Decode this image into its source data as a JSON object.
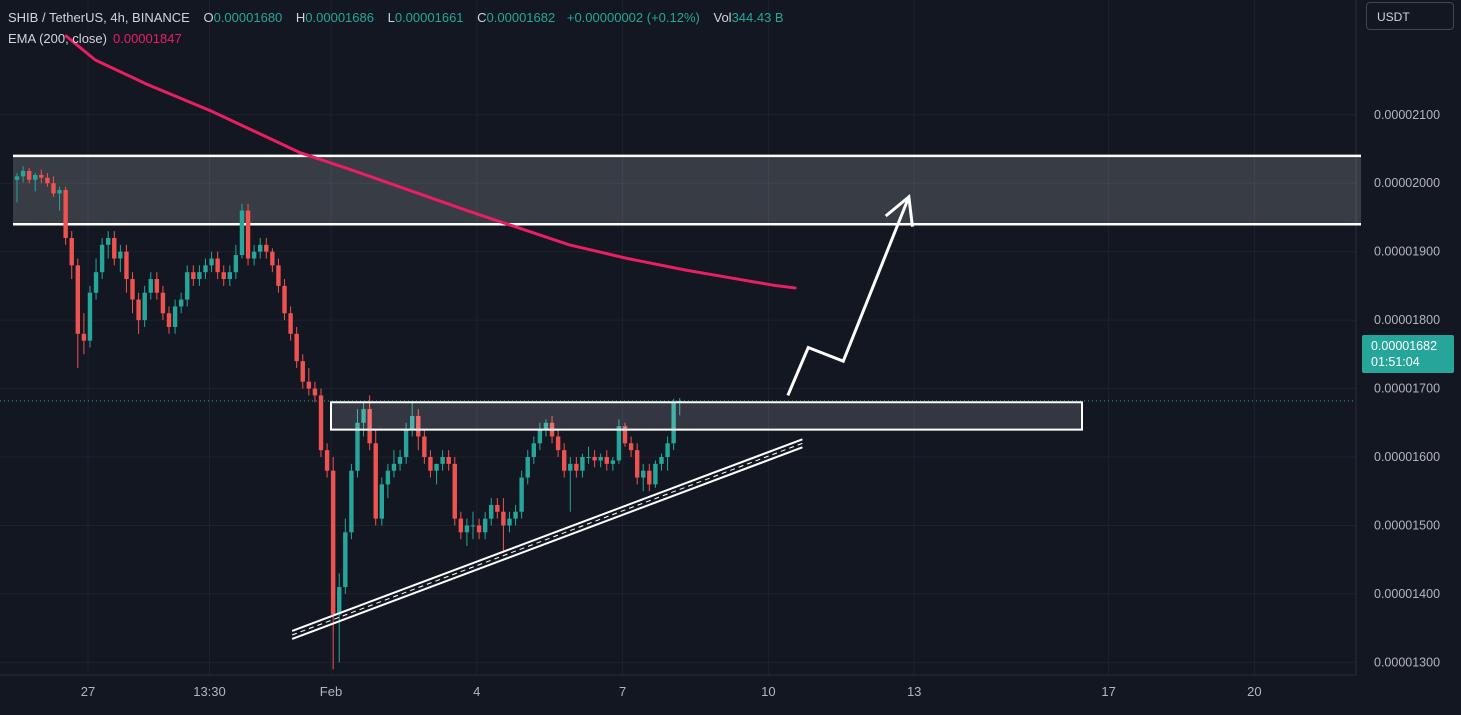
{
  "header": {
    "symbol": "SHIB / TetherUS, 4h, BINANCE",
    "ohlc": [
      {
        "key": "O",
        "value": "0.00001680"
      },
      {
        "key": "H",
        "value": "0.00001686"
      },
      {
        "key": "L",
        "value": "0.00001661"
      },
      {
        "key": "C",
        "value": "0.00001682"
      }
    ],
    "change": "+0.00000002 (+0.12%)",
    "vol_label": "Vol",
    "vol_value": "344.43 B",
    "ema_label": "EMA (200, close)",
    "ema_value": "0.00001847"
  },
  "currency": "USDT",
  "last_price": {
    "value": "0.00001682",
    "countdown": "01:51:04"
  },
  "colors": {
    "background": "#131722",
    "up": "#26a69a",
    "down": "#ef5350",
    "ema": "#e91e63",
    "grid": "#1e222d",
    "drawing": "#ffffff"
  },
  "chart_data": {
    "type": "candlestick",
    "symbol": "SHIB/USDT",
    "timeframe": "4h",
    "y_range": [
      1.22e-05,
      2.18e-05
    ],
    "y_ticks": [
      "0.00002100",
      "0.00002000",
      "0.00001900",
      "0.00001800",
      "0.00001700",
      "0.00001600",
      "0.00001500",
      "0.00001400",
      "0.00001300"
    ],
    "x_ticks": [
      "27",
      "13:30",
      "Feb",
      "4",
      "7",
      "10",
      "13",
      "17",
      "20"
    ],
    "candles": [
      [
        2.005,
        2.015,
        1.972,
        2.01
      ],
      [
        2.01,
        2.025,
        2.001,
        2.018
      ],
      [
        2.018,
        2.022,
        2.0,
        2.005
      ],
      [
        2.005,
        2.015,
        1.988,
        2.012
      ],
      [
        2.012,
        2.02,
        2.0,
        2.008
      ],
      [
        2.008,
        2.015,
        1.995,
        2.0
      ],
      [
        2.0,
        2.01,
        1.98,
        1.985
      ],
      [
        1.985,
        1.995,
        1.96,
        1.99
      ],
      [
        1.99,
        1.995,
        1.91,
        1.92
      ],
      [
        1.92,
        1.93,
        1.86,
        1.88
      ],
      [
        1.88,
        1.89,
        1.73,
        1.78
      ],
      [
        1.78,
        1.81,
        1.75,
        1.77
      ],
      [
        1.77,
        1.85,
        1.76,
        1.84
      ],
      [
        1.84,
        1.89,
        1.83,
        1.87
      ],
      [
        1.87,
        1.92,
        1.86,
        1.91
      ],
      [
        1.91,
        1.93,
        1.89,
        1.92
      ],
      [
        1.92,
        1.93,
        1.88,
        1.89
      ],
      [
        1.89,
        1.91,
        1.87,
        1.9
      ],
      [
        1.9,
        1.91,
        1.84,
        1.86
      ],
      [
        1.86,
        1.87,
        1.81,
        1.83
      ],
      [
        1.83,
        1.84,
        1.78,
        1.8
      ],
      [
        1.8,
        1.85,
        1.79,
        1.84
      ],
      [
        1.84,
        1.87,
        1.83,
        1.86
      ],
      [
        1.86,
        1.87,
        1.83,
        1.84
      ],
      [
        1.84,
        1.85,
        1.8,
        1.81
      ],
      [
        1.81,
        1.82,
        1.78,
        1.79
      ],
      [
        1.79,
        1.83,
        1.78,
        1.82
      ],
      [
        1.82,
        1.84,
        1.81,
        1.83
      ],
      [
        1.83,
        1.88,
        1.82,
        1.87
      ],
      [
        1.87,
        1.88,
        1.85,
        1.86
      ],
      [
        1.86,
        1.88,
        1.85,
        1.87
      ],
      [
        1.87,
        1.89,
        1.86,
        1.88
      ],
      [
        1.88,
        1.9,
        1.87,
        1.89
      ],
      [
        1.89,
        1.9,
        1.86,
        1.87
      ],
      [
        1.87,
        1.88,
        1.85,
        1.86
      ],
      [
        1.86,
        1.88,
        1.85,
        1.87
      ],
      [
        1.87,
        1.91,
        1.86,
        1.895
      ],
      [
        1.895,
        1.97,
        1.89,
        1.96
      ],
      [
        1.96,
        1.97,
        1.88,
        1.89
      ],
      [
        1.89,
        1.91,
        1.88,
        1.9
      ],
      [
        1.9,
        1.92,
        1.89,
        1.91
      ],
      [
        1.91,
        1.92,
        1.89,
        1.9
      ],
      [
        1.9,
        1.905,
        1.87,
        1.88
      ],
      [
        1.88,
        1.89,
        1.84,
        1.85
      ],
      [
        1.85,
        1.86,
        1.8,
        1.81
      ],
      [
        1.81,
        1.82,
        1.77,
        1.78
      ],
      [
        1.78,
        1.79,
        1.73,
        1.74
      ],
      [
        1.74,
        1.75,
        1.7,
        1.71
      ],
      [
        1.71,
        1.73,
        1.69,
        1.7
      ],
      [
        1.7,
        1.71,
        1.68,
        1.69
      ],
      [
        1.69,
        1.7,
        1.6,
        1.61
      ],
      [
        1.61,
        1.62,
        1.57,
        1.58
      ],
      [
        1.58,
        1.6,
        1.29,
        1.37
      ],
      [
        1.37,
        1.43,
        1.3,
        1.41
      ],
      [
        1.41,
        1.51,
        1.4,
        1.49
      ],
      [
        1.49,
        1.59,
        1.48,
        1.58
      ],
      [
        1.58,
        1.67,
        1.57,
        1.65
      ],
      [
        1.65,
        1.68,
        1.63,
        1.67
      ],
      [
        1.67,
        1.69,
        1.61,
        1.62
      ],
      [
        1.62,
        1.64,
        1.5,
        1.51
      ],
      [
        1.51,
        1.57,
        1.5,
        1.56
      ],
      [
        1.56,
        1.59,
        1.54,
        1.58
      ],
      [
        1.58,
        1.61,
        1.57,
        1.59
      ],
      [
        1.59,
        1.61,
        1.58,
        1.6
      ],
      [
        1.6,
        1.65,
        1.59,
        1.64
      ],
      [
        1.64,
        1.68,
        1.63,
        1.66
      ],
      [
        1.66,
        1.67,
        1.61,
        1.63
      ],
      [
        1.63,
        1.64,
        1.59,
        1.6
      ],
      [
        1.6,
        1.61,
        1.57,
        1.58
      ],
      [
        1.58,
        1.59,
        1.56,
        1.59
      ],
      [
        1.59,
        1.61,
        1.58,
        1.6
      ],
      [
        1.6,
        1.61,
        1.58,
        1.59
      ],
      [
        1.59,
        1.6,
        1.5,
        1.51
      ],
      [
        1.51,
        1.52,
        1.48,
        1.49
      ],
      [
        1.49,
        1.51,
        1.47,
        1.5
      ],
      [
        1.5,
        1.52,
        1.48,
        1.5
      ],
      [
        1.5,
        1.51,
        1.48,
        1.49
      ],
      [
        1.49,
        1.52,
        1.48,
        1.51
      ],
      [
        1.51,
        1.54,
        1.5,
        1.53
      ],
      [
        1.53,
        1.54,
        1.51,
        1.52
      ],
      [
        1.52,
        1.54,
        1.46,
        1.5
      ],
      [
        1.5,
        1.52,
        1.49,
        1.51
      ],
      [
        1.51,
        1.53,
        1.5,
        1.52
      ],
      [
        1.52,
        1.58,
        1.51,
        1.57
      ],
      [
        1.57,
        1.61,
        1.56,
        1.6
      ],
      [
        1.6,
        1.63,
        1.59,
        1.62
      ],
      [
        1.62,
        1.65,
        1.61,
        1.64
      ],
      [
        1.64,
        1.655,
        1.63,
        1.65
      ],
      [
        1.65,
        1.66,
        1.62,
        1.63
      ],
      [
        1.63,
        1.64,
        1.6,
        1.61
      ],
      [
        1.61,
        1.62,
        1.57,
        1.58
      ],
      [
        1.58,
        1.6,
        1.52,
        1.59
      ],
      [
        1.59,
        1.6,
        1.57,
        1.58
      ],
      [
        1.58,
        1.605,
        1.57,
        1.6
      ],
      [
        1.6,
        1.615,
        1.59,
        1.6
      ],
      [
        1.6,
        1.61,
        1.585,
        1.595
      ],
      [
        1.595,
        1.605,
        1.585,
        1.6
      ],
      [
        1.6,
        1.61,
        1.58,
        1.59
      ],
      [
        1.59,
        1.6,
        1.58,
        1.595
      ],
      [
        1.595,
        1.655,
        1.59,
        1.645
      ],
      [
        1.645,
        1.65,
        1.615,
        1.62
      ],
      [
        1.62,
        1.63,
        1.6,
        1.61
      ],
      [
        1.61,
        1.62,
        1.56,
        1.57
      ],
      [
        1.57,
        1.59,
        1.55,
        1.58
      ],
      [
        1.58,
        1.59,
        1.55,
        1.56
      ],
      [
        1.56,
        1.595,
        1.555,
        1.59
      ],
      [
        1.59,
        1.605,
        1.58,
        1.6
      ],
      [
        1.6,
        1.63,
        1.58,
        1.62
      ],
      [
        1.62,
        1.685,
        1.61,
        1.68
      ],
      [
        1.68,
        1.686,
        1.661,
        1.682
      ]
    ],
    "ema_200": [
      [
        -0.15,
        2.215
      ],
      [
        0.05,
        2.18
      ],
      [
        0.4,
        2.145
      ],
      [
        0.85,
        2.105
      ],
      [
        1.2,
        2.07
      ],
      [
        1.45,
        2.045
      ],
      [
        1.8,
        2.02
      ],
      [
        2.2,
        1.99
      ],
      [
        2.6,
        1.96
      ],
      [
        2.95,
        1.935
      ],
      [
        3.3,
        1.91
      ],
      [
        3.7,
        1.89
      ],
      [
        4.1,
        1.873
      ],
      [
        4.4,
        1.862
      ],
      [
        4.7,
        1.851
      ],
      [
        4.85,
        1.847
      ]
    ],
    "annotations": {
      "resistance_zone": [
        1.94e-05,
        2.04e-05
      ],
      "breakout_zone": [
        1.64e-05,
        1.68e-05
      ],
      "rising_trendline": [
        [
          1.4,
          1.34e-05
        ],
        [
          4.9,
          1.62e-05
        ]
      ],
      "projected_path": [
        [
          4.8,
          1.69e-05
        ],
        [
          4.94,
          1.76e-05
        ],
        [
          5.18,
          1.74e-05
        ],
        [
          5.63,
          1.98e-05
        ]
      ]
    }
  }
}
